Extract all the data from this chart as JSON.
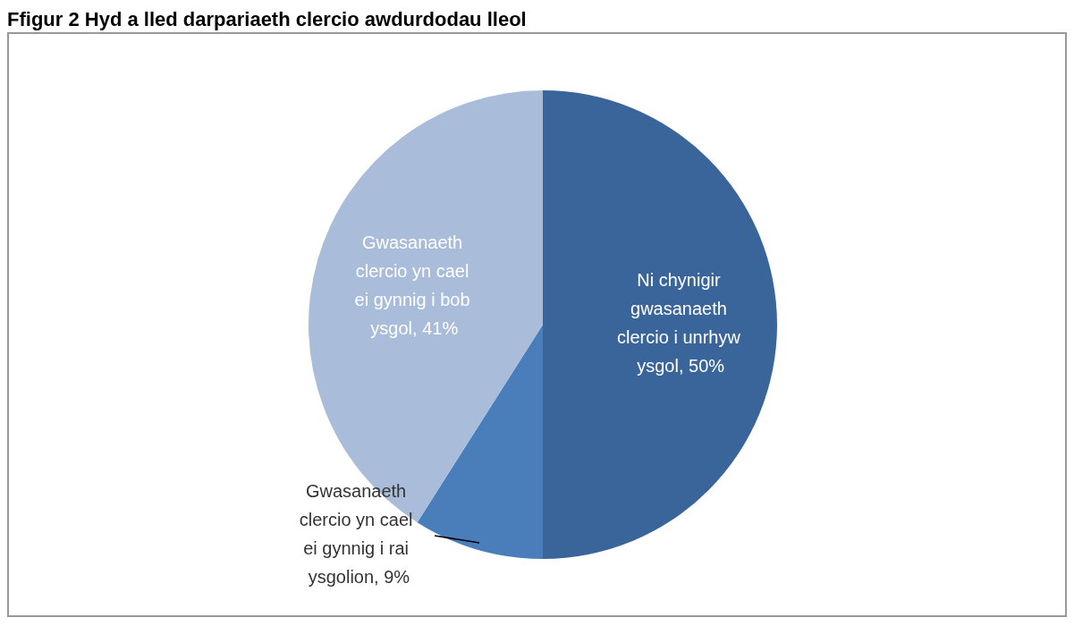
{
  "chart_data": {
    "type": "pie",
    "title": "Ffigur 2 Hyd a lled darpariaeth clercio awdurdodau lleol",
    "categories": [
      "Ni chynigir gwasanaeth clercio i unrhyw ysgol",
      "Gwasanaeth clercio yn cael ei gynnig i rai ysgolion",
      "Gwasanaeth clercio yn cael ei gynnig i bob ysgol"
    ],
    "values": [
      50,
      9,
      41
    ],
    "colors": [
      "#3a659b",
      "#4a7ebb",
      "#a9bcda"
    ],
    "value_labels": [
      ", 50%",
      ", 9%",
      ", 41%"
    ],
    "legend": false
  }
}
